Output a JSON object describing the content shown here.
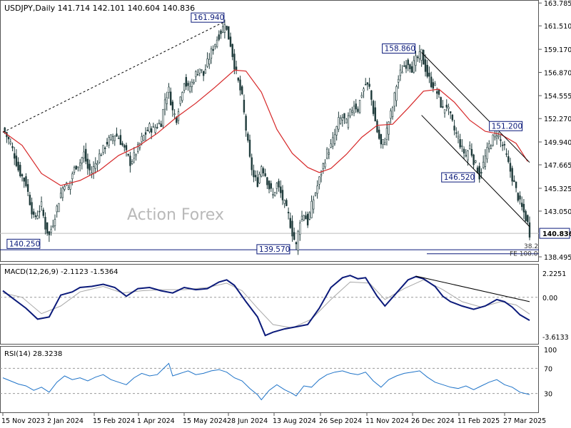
{
  "header": {
    "symbol_line": "USDJPY,Daily  141.714 142.101 140.604 140.836",
    "watermark": "Action Forex"
  },
  "colors": {
    "candle": "#1f3b3b",
    "ma": "#d62728",
    "macd": "#0b1a7a",
    "signal": "#a8a8a8",
    "rsi": "#1e73c8",
    "price_tag_bg": "#0b1a7a",
    "label_border": "#0b1a7a",
    "grid": "#9a9a9a"
  },
  "chart_data": [
    {
      "type": "line",
      "panel": "price",
      "series_note": "daily candlesticks with moving average",
      "y_ticks": [
        "163.785",
        "161.510",
        "159.170",
        "156.870",
        "154.555",
        "152.270",
        "149.940",
        "147.665",
        "145.325",
        "143.050",
        "140.725",
        "138.495"
      ],
      "ylim": [
        138.0,
        163.8
      ],
      "last_price": "140.836",
      "close_path": [
        [
          0,
          151.3
        ],
        [
          2,
          150.5
        ],
        [
          4,
          149.8
        ],
        [
          6,
          148.6
        ],
        [
          8,
          147.2
        ],
        [
          10,
          146.5
        ],
        [
          12,
          145.8
        ],
        [
          14,
          144.0
        ],
        [
          16,
          142.3
        ],
        [
          18,
          142.8
        ],
        [
          20,
          143.6
        ],
        [
          22,
          141.5
        ],
        [
          24,
          140.6
        ],
        [
          26,
          141.9
        ],
        [
          28,
          143.4
        ],
        [
          30,
          144.8
        ],
        [
          32,
          145.9
        ],
        [
          34,
          145.3
        ],
        [
          36,
          146.8
        ],
        [
          38,
          147.6
        ],
        [
          40,
          147.9
        ],
        [
          42,
          148.8
        ],
        [
          44,
          147.3
        ],
        [
          46,
          146.9
        ],
        [
          48,
          147.8
        ],
        [
          50,
          148.6
        ],
        [
          52,
          149.2
        ],
        [
          54,
          149.9
        ],
        [
          56,
          150.3
        ],
        [
          58,
          150.7
        ],
        [
          60,
          150.4
        ],
        [
          62,
          149.6
        ],
        [
          64,
          148.8
        ],
        [
          66,
          147.9
        ],
        [
          68,
          148.5
        ],
        [
          70,
          149.3
        ],
        [
          72,
          150.2
        ],
        [
          74,
          150.8
        ],
        [
          76,
          151.4
        ],
        [
          78,
          151.2
        ],
        [
          80,
          151.6
        ],
        [
          82,
          151.9
        ],
        [
          84,
          154.2
        ],
        [
          86,
          155.1
        ],
        [
          88,
          153.0
        ],
        [
          90,
          152.3
        ],
        [
          92,
          154.4
        ],
        [
          94,
          156.1
        ],
        [
          96,
          155.2
        ],
        [
          98,
          155.8
        ],
        [
          100,
          156.7
        ],
        [
          102,
          157.3
        ],
        [
          104,
          156.6
        ],
        [
          106,
          157.8
        ],
        [
          108,
          158.9
        ],
        [
          110,
          159.8
        ],
        [
          112,
          160.6
        ],
        [
          114,
          161.3
        ],
        [
          115,
          161.94
        ],
        [
          116,
          161.0
        ],
        [
          118,
          159.7
        ],
        [
          120,
          157.6
        ],
        [
          122,
          155.9
        ],
        [
          124,
          154.3
        ],
        [
          126,
          151.2
        ],
        [
          128,
          148.2
        ],
        [
          130,
          146.4
        ],
        [
          132,
          145.9
        ],
        [
          134,
          147.6
        ],
        [
          136,
          146.7
        ],
        [
          138,
          145.4
        ],
        [
          140,
          144.6
        ],
        [
          142,
          145.7
        ],
        [
          144,
          144.8
        ],
        [
          146,
          143.7
        ],
        [
          148,
          142.6
        ],
        [
          150,
          140.9
        ],
        [
          152,
          139.57
        ],
        [
          154,
          142.2
        ],
        [
          156,
          142.8
        ],
        [
          158,
          141.9
        ],
        [
          160,
          143.6
        ],
        [
          162,
          144.9
        ],
        [
          164,
          146.2
        ],
        [
          166,
          147.6
        ],
        [
          168,
          148.9
        ],
        [
          170,
          149.5
        ],
        [
          172,
          150.6
        ],
        [
          174,
          152.0
        ],
        [
          176,
          152.4
        ],
        [
          178,
          151.8
        ],
        [
          180,
          152.8
        ],
        [
          182,
          153.7
        ],
        [
          184,
          153.2
        ],
        [
          186,
          154.8
        ],
        [
          188,
          155.7
        ],
        [
          190,
          155.3
        ],
        [
          192,
          153.0
        ],
        [
          194,
          151.0
        ],
        [
          196,
          149.6
        ],
        [
          198,
          150.2
        ],
        [
          200,
          152.0
        ],
        [
          202,
          153.4
        ],
        [
          204,
          155.6
        ],
        [
          206,
          156.8
        ],
        [
          208,
          157.5
        ],
        [
          210,
          157.9
        ],
        [
          212,
          157.3
        ],
        [
          214,
          158.1
        ],
        [
          216,
          158.5
        ],
        [
          217,
          158.86
        ],
        [
          218,
          157.9
        ],
        [
          220,
          156.6
        ],
        [
          222,
          155.8
        ],
        [
          224,
          155.4
        ],
        [
          226,
          154.3
        ],
        [
          228,
          153.1
        ],
        [
          230,
          153.6
        ],
        [
          232,
          152.4
        ],
        [
          234,
          151.1
        ],
        [
          236,
          150.3
        ],
        [
          238,
          149.2
        ],
        [
          240,
          148.6
        ],
        [
          242,
          149.5
        ],
        [
          244,
          148.1
        ],
        [
          246,
          147.2
        ],
        [
          247,
          146.52
        ],
        [
          248,
          147.1
        ],
        [
          250,
          148.4
        ],
        [
          252,
          149.6
        ],
        [
          254,
          150.3
        ],
        [
          256,
          150.9
        ],
        [
          258,
          150.0
        ],
        [
          260,
          149.2
        ],
        [
          262,
          147.7
        ],
        [
          264,
          146.4
        ],
        [
          266,
          145.1
        ],
        [
          268,
          143.8
        ],
        [
          270,
          142.9
        ],
        [
          272,
          141.8
        ],
        [
          273,
          140.836
        ]
      ],
      "ma_path": [
        [
          0,
          151.0
        ],
        [
          10,
          149.6
        ],
        [
          20,
          146.8
        ],
        [
          30,
          145.6
        ],
        [
          40,
          146.1
        ],
        [
          50,
          147.1
        ],
        [
          60,
          148.6
        ],
        [
          70,
          149.5
        ],
        [
          80,
          150.8
        ],
        [
          90,
          152.4
        ],
        [
          100,
          153.8
        ],
        [
          110,
          155.4
        ],
        [
          120,
          157.1
        ],
        [
          126,
          157.0
        ],
        [
          134,
          154.9
        ],
        [
          142,
          151.2
        ],
        [
          150,
          148.8
        ],
        [
          158,
          147.4
        ],
        [
          164,
          146.9
        ],
        [
          170,
          147.3
        ],
        [
          178,
          148.7
        ],
        [
          186,
          150.4
        ],
        [
          194,
          151.6
        ],
        [
          202,
          151.7
        ],
        [
          210,
          153.3
        ],
        [
          218,
          155.0
        ],
        [
          226,
          155.2
        ],
        [
          234,
          153.9
        ],
        [
          242,
          152.1
        ],
        [
          250,
          151.0
        ],
        [
          258,
          150.7
        ],
        [
          266,
          149.8
        ],
        [
          272,
          148.0
        ]
      ],
      "annotations": [
        {
          "text": "161.940",
          "x": 115,
          "y": 161.94
        },
        {
          "text": "158.860",
          "x": 217,
          "y": 158.86
        },
        {
          "text": "151.200",
          "x": 254,
          "y": 151.2
        },
        {
          "text": "146.520",
          "x": 247,
          "y": 146.52
        },
        {
          "text": "140.250",
          "x": 24,
          "y": 140.25
        },
        {
          "text": "139.570",
          "x": 152,
          "y": 139.57
        },
        {
          "text": "38.2",
          "x": 271,
          "y": 139.2
        },
        {
          "text": "FE 100.0",
          "x": 265,
          "y": 138.8
        }
      ],
      "trendlines": [
        {
          "style": "dashed",
          "from": [
            0,
            150.9
          ],
          "to": [
            115,
            161.94
          ]
        },
        {
          "style": "solid",
          "from": [
            217,
            158.86
          ],
          "to": [
            273,
            147.9
          ]
        },
        {
          "style": "solid",
          "from": [
            217,
            152.6
          ],
          "to": [
            273,
            141.5
          ]
        }
      ]
    },
    {
      "type": "line",
      "panel": "macd",
      "title": "MACD(12,26,9) -2.1123 -1.5364",
      "y_ticks": [
        "2.2251",
        "0.00",
        "-3.6133"
      ],
      "ylim": [
        -4.2,
        2.8
      ],
      "macd_path": [
        [
          0,
          0.6
        ],
        [
          6,
          -0.2
        ],
        [
          12,
          -1.0
        ],
        [
          18,
          -2.0
        ],
        [
          24,
          -1.8
        ],
        [
          30,
          0.2
        ],
        [
          36,
          0.5
        ],
        [
          40,
          0.9
        ],
        [
          46,
          1.0
        ],
        [
          52,
          1.2
        ],
        [
          58,
          0.9
        ],
        [
          64,
          0.1
        ],
        [
          70,
          0.8
        ],
        [
          76,
          0.9
        ],
        [
          82,
          0.6
        ],
        [
          88,
          0.4
        ],
        [
          94,
          0.9
        ],
        [
          100,
          0.7
        ],
        [
          106,
          0.8
        ],
        [
          112,
          1.4
        ],
        [
          116,
          1.6
        ],
        [
          120,
          1.1
        ],
        [
          126,
          -0.4
        ],
        [
          132,
          -1.8
        ],
        [
          136,
          -3.5
        ],
        [
          140,
          -3.2
        ],
        [
          146,
          -2.9
        ],
        [
          152,
          -2.7
        ],
        [
          158,
          -2.5
        ],
        [
          164,
          -1.0
        ],
        [
          170,
          0.9
        ],
        [
          176,
          1.8
        ],
        [
          180,
          2.0
        ],
        [
          184,
          1.7
        ],
        [
          188,
          1.8
        ],
        [
          194,
          0.1
        ],
        [
          198,
          -0.8
        ],
        [
          204,
          0.4
        ],
        [
          210,
          1.6
        ],
        [
          214,
          1.9
        ],
        [
          218,
          1.7
        ],
        [
          224,
          1.0
        ],
        [
          228,
          0.1
        ],
        [
          232,
          -0.4
        ],
        [
          238,
          -0.8
        ],
        [
          244,
          -1.1
        ],
        [
          250,
          -0.8
        ],
        [
          256,
          -0.2
        ],
        [
          260,
          -0.4
        ],
        [
          264,
          -0.9
        ],
        [
          268,
          -1.6
        ],
        [
          273,
          -2.1123
        ]
      ],
      "signal_path": [
        [
          0,
          0.4
        ],
        [
          10,
          0.0
        ],
        [
          20,
          -1.5
        ],
        [
          30,
          -0.8
        ],
        [
          40,
          0.5
        ],
        [
          52,
          1.0
        ],
        [
          62,
          0.4
        ],
        [
          72,
          0.6
        ],
        [
          82,
          0.7
        ],
        [
          94,
          0.7
        ],
        [
          106,
          0.9
        ],
        [
          116,
          1.3
        ],
        [
          124,
          0.6
        ],
        [
          132,
          -1.0
        ],
        [
          140,
          -2.5
        ],
        [
          150,
          -2.8
        ],
        [
          160,
          -2.0
        ],
        [
          170,
          -0.2
        ],
        [
          180,
          1.4
        ],
        [
          190,
          1.3
        ],
        [
          198,
          -0.2
        ],
        [
          208,
          0.8
        ],
        [
          218,
          1.6
        ],
        [
          228,
          0.7
        ],
        [
          238,
          -0.4
        ],
        [
          248,
          -0.9
        ],
        [
          258,
          -0.4
        ],
        [
          266,
          -0.7
        ],
        [
          273,
          -1.5364
        ]
      ],
      "trendline": {
        "style": "solid",
        "from": [
          214,
          1.95
        ],
        "to": [
          273,
          -0.4
        ]
      }
    },
    {
      "type": "line",
      "panel": "rsi",
      "title": "RSI(14) 28.3238",
      "y_ticks": [
        "100",
        "70",
        "30",
        "0"
      ],
      "ylim": [
        0,
        100
      ],
      "levels": [
        70,
        30
      ],
      "rsi_path": [
        [
          0,
          55
        ],
        [
          4,
          50
        ],
        [
          8,
          45
        ],
        [
          12,
          42
        ],
        [
          16,
          35
        ],
        [
          20,
          40
        ],
        [
          24,
          32
        ],
        [
          28,
          48
        ],
        [
          32,
          58
        ],
        [
          36,
          52
        ],
        [
          40,
          55
        ],
        [
          44,
          50
        ],
        [
          48,
          56
        ],
        [
          52,
          60
        ],
        [
          56,
          52
        ],
        [
          60,
          48
        ],
        [
          64,
          44
        ],
        [
          68,
          55
        ],
        [
          72,
          62
        ],
        [
          76,
          58
        ],
        [
          80,
          60
        ],
        [
          84,
          72
        ],
        [
          86,
          78
        ],
        [
          88,
          58
        ],
        [
          92,
          62
        ],
        [
          96,
          66
        ],
        [
          100,
          60
        ],
        [
          104,
          62
        ],
        [
          108,
          66
        ],
        [
          112,
          68
        ],
        [
          116,
          64
        ],
        [
          120,
          55
        ],
        [
          124,
          50
        ],
        [
          128,
          38
        ],
        [
          132,
          28
        ],
        [
          134,
          20
        ],
        [
          138,
          35
        ],
        [
          142,
          44
        ],
        [
          146,
          36
        ],
        [
          150,
          30
        ],
        [
          152,
          26
        ],
        [
          156,
          42
        ],
        [
          160,
          40
        ],
        [
          164,
          52
        ],
        [
          168,
          60
        ],
        [
          172,
          64
        ],
        [
          176,
          66
        ],
        [
          180,
          62
        ],
        [
          184,
          60
        ],
        [
          188,
          64
        ],
        [
          192,
          50
        ],
        [
          196,
          40
        ],
        [
          200,
          52
        ],
        [
          204,
          58
        ],
        [
          208,
          62
        ],
        [
          212,
          64
        ],
        [
          216,
          66
        ],
        [
          220,
          56
        ],
        [
          224,
          48
        ],
        [
          228,
          44
        ],
        [
          232,
          40
        ],
        [
          236,
          38
        ],
        [
          240,
          42
        ],
        [
          244,
          36
        ],
        [
          248,
          42
        ],
        [
          252,
          48
        ],
        [
          256,
          52
        ],
        [
          260,
          44
        ],
        [
          264,
          40
        ],
        [
          268,
          32
        ],
        [
          273,
          28.3238
        ]
      ]
    }
  ],
  "x_axis": {
    "labels": [
      "15 Nov 2023",
      "2 Jan 2024",
      "15 Feb 2024",
      "1 Apr 2024",
      "15 May 2024",
      "28 Jun 2024",
      "13 Aug 2024",
      "26 Sep 2024",
      "11 Nov 2024",
      "26 Dec 2024",
      "11 Feb 2025",
      "27 Mar 2025"
    ]
  }
}
